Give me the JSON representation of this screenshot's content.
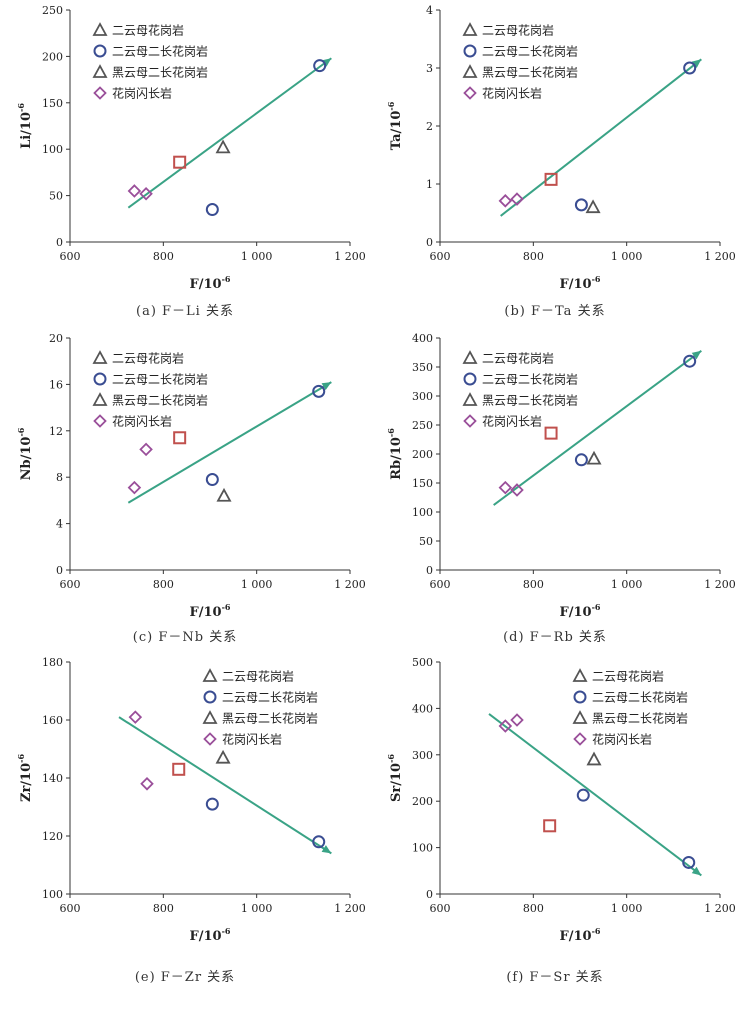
{
  "chart_data": [
    {
      "type": "scatter",
      "caption": "(a) F－Li 关系",
      "xlabel": "F/10",
      "ylabel": "Li/10",
      "label_sup": "-6",
      "xlim": [
        600,
        1200
      ],
      "xticks": [
        600,
        800,
        1000,
        1200
      ],
      "xtick_labels": [
        "600",
        "800",
        "1 000",
        "1 200"
      ],
      "ylim": [
        0,
        250
      ],
      "yticks": [
        0,
        50,
        100,
        150,
        200,
        250
      ],
      "ytick_labels": [
        "0",
        "50",
        "100",
        "150",
        "200",
        "250"
      ],
      "legend_placement": "top-left",
      "series": [
        {
          "name": "二云母花岗岩",
          "marker": "triangle",
          "color": "#555555",
          "points": [
            [
              928,
              102
            ]
          ]
        },
        {
          "name": "二云母二长花岗岩",
          "marker": "circle",
          "color": "#3a4d92",
          "points": [
            [
              905,
              35
            ],
            [
              1135,
              190
            ]
          ]
        },
        {
          "name": "黑云母二长花岗岩",
          "marker": "triangle",
          "color": "#555555",
          "points": []
        },
        {
          "name": "花岗闪长岩",
          "marker": "diamond",
          "color": "#9a4f9a",
          "points": [
            [
              738,
              55
            ],
            [
              763,
              52
            ]
          ]
        },
        {
          "name": "",
          "marker": "square",
          "color": "#c0504d",
          "points": [
            [
              835,
              86
            ]
          ]
        }
      ],
      "trend": {
        "from": [
          725,
          37
        ],
        "to": [
          1160,
          198
        ],
        "color": "#3aa386"
      }
    },
    {
      "type": "scatter",
      "caption": "(b) F－Ta 关系",
      "xlabel": "F/10",
      "ylabel": "Ta/10",
      "label_sup": "-6",
      "xlim": [
        600,
        1200
      ],
      "xticks": [
        600,
        800,
        1000,
        1200
      ],
      "xtick_labels": [
        "600",
        "800",
        "1 000",
        "1 200"
      ],
      "ylim": [
        0,
        4
      ],
      "yticks": [
        0,
        1,
        2,
        3,
        4
      ],
      "ytick_labels": [
        "0",
        "1",
        "2",
        "3",
        "4"
      ],
      "legend_placement": "top-left",
      "series": [
        {
          "name": "二云母花岗岩",
          "marker": "triangle",
          "color": "#555555",
          "points": [
            [
              928,
              0.6
            ]
          ]
        },
        {
          "name": "二云母二长花岗岩",
          "marker": "circle",
          "color": "#3a4d92",
          "points": [
            [
              903,
              0.64
            ],
            [
              1135,
              3.0
            ]
          ]
        },
        {
          "name": "黑云母二长花岗岩",
          "marker": "triangle",
          "color": "#555555",
          "points": []
        },
        {
          "name": "花岗闪长岩",
          "marker": "diamond",
          "color": "#9a4f9a",
          "points": [
            [
              740,
              0.71
            ],
            [
              765,
              0.74
            ]
          ]
        },
        {
          "name": "",
          "marker": "square",
          "color": "#c0504d",
          "points": [
            [
              838,
              1.08
            ]
          ]
        }
      ],
      "trend": {
        "from": [
          730,
          0.45
        ],
        "to": [
          1160,
          3.15
        ],
        "color": "#3aa386"
      }
    },
    {
      "type": "scatter",
      "caption": "(c) F－Nb 关系",
      "xlabel": "F/10",
      "ylabel": "Nb/10",
      "label_sup": "-6",
      "xlim": [
        600,
        1200
      ],
      "xticks": [
        600,
        800,
        1000,
        1200
      ],
      "xtick_labels": [
        "600",
        "800",
        "1 000",
        "1 200"
      ],
      "ylim": [
        0,
        20
      ],
      "yticks": [
        0,
        4,
        8,
        12,
        16,
        20
      ],
      "ytick_labels": [
        "0",
        "4",
        "8",
        "12",
        "16",
        "20"
      ],
      "legend_placement": "top-left",
      "series": [
        {
          "name": "二云母花岗岩",
          "marker": "triangle",
          "color": "#555555",
          "points": [
            [
              930,
              6.4
            ]
          ]
        },
        {
          "name": "二云母二长花岗岩",
          "marker": "circle",
          "color": "#3a4d92",
          "points": [
            [
              905,
              7.8
            ],
            [
              1133,
              15.4
            ]
          ]
        },
        {
          "name": "黑云母二长花岗岩",
          "marker": "triangle",
          "color": "#555555",
          "points": []
        },
        {
          "name": "花岗闪长岩",
          "marker": "diamond",
          "color": "#9a4f9a",
          "points": [
            [
              738,
              7.1
            ],
            [
              763,
              10.4
            ]
          ]
        },
        {
          "name": "",
          "marker": "square",
          "color": "#c0504d",
          "points": [
            [
              835,
              11.4
            ]
          ]
        }
      ],
      "trend": {
        "from": [
          725,
          5.8
        ],
        "to": [
          1160,
          16.2
        ],
        "color": "#3aa386"
      }
    },
    {
      "type": "scatter",
      "caption": "(d) F－Rb 关系",
      "xlabel": "F/10",
      "ylabel": "Rb/10",
      "label_sup": "-6",
      "xlim": [
        600,
        1200
      ],
      "xticks": [
        600,
        800,
        1000,
        1200
      ],
      "xtick_labels": [
        "600",
        "800",
        "1 000",
        "1 200"
      ],
      "ylim": [
        0,
        400
      ],
      "yticks": [
        0,
        50,
        100,
        150,
        200,
        250,
        300,
        350,
        400
      ],
      "ytick_labels": [
        "0",
        "50",
        "100",
        "150",
        "200",
        "250",
        "300",
        "350",
        "400"
      ],
      "legend_placement": "top-left",
      "series": [
        {
          "name": "二云母花岗岩",
          "marker": "triangle",
          "color": "#555555",
          "points": [
            [
              930,
              192
            ]
          ]
        },
        {
          "name": "二云母二长花岗岩",
          "marker": "circle",
          "color": "#3a4d92",
          "points": [
            [
              903,
              190
            ],
            [
              1135,
              360
            ]
          ]
        },
        {
          "name": "黑云母二长花岗岩",
          "marker": "triangle",
          "color": "#555555",
          "points": []
        },
        {
          "name": "花岗闪长岩",
          "marker": "diamond",
          "color": "#9a4f9a",
          "points": [
            [
              740,
              142
            ],
            [
              765,
              138
            ]
          ]
        },
        {
          "name": "",
          "marker": "square",
          "color": "#c0504d",
          "points": [
            [
              838,
              236
            ]
          ]
        }
      ],
      "trend": {
        "from": [
          715,
          112
        ],
        "to": [
          1160,
          378
        ],
        "color": "#3aa386"
      }
    },
    {
      "type": "scatter",
      "caption": "(e) F－Zr 关系",
      "xlabel": "F/10",
      "ylabel": "Zr/10",
      "label_sup": "-6",
      "xlim": [
        600,
        1200
      ],
      "xticks": [
        600,
        800,
        1000,
        1200
      ],
      "xtick_labels": [
        "600",
        "800",
        "1 000",
        "1 200"
      ],
      "ylim": [
        100,
        180
      ],
      "yticks": [
        100,
        120,
        140,
        160,
        180
      ],
      "ytick_labels": [
        "100",
        "120",
        "140",
        "160",
        "180"
      ],
      "legend_placement": "top-right",
      "series": [
        {
          "name": "二云母花岗岩",
          "marker": "triangle",
          "color": "#555555",
          "points": [
            [
              928,
              147
            ]
          ]
        },
        {
          "name": "二云母二长花岗岩",
          "marker": "circle",
          "color": "#3a4d92",
          "points": [
            [
              905,
              131
            ],
            [
              1133,
              118
            ]
          ]
        },
        {
          "name": "黑云母二长花岗岩",
          "marker": "triangle",
          "color": "#555555",
          "points": []
        },
        {
          "name": "花岗闪长岩",
          "marker": "diamond",
          "color": "#9a4f9a",
          "points": [
            [
              740,
              161
            ],
            [
              765,
              138
            ]
          ]
        },
        {
          "name": "",
          "marker": "square",
          "color": "#c0504d",
          "points": [
            [
              833,
              143
            ]
          ]
        }
      ],
      "trend": {
        "from": [
          705,
          161
        ],
        "to": [
          1160,
          114
        ],
        "color": "#3aa386"
      }
    },
    {
      "type": "scatter",
      "caption": "(f) F－Sr 关系",
      "xlabel": "F/10",
      "ylabel": "Sr/10",
      "label_sup": "-6",
      "xlim": [
        600,
        1200
      ],
      "xticks": [
        600,
        800,
        1000,
        1200
      ],
      "xtick_labels": [
        "600",
        "800",
        "1 000",
        "1 200"
      ],
      "ylim": [
        0,
        500
      ],
      "yticks": [
        0,
        100,
        200,
        300,
        400,
        500
      ],
      "ytick_labels": [
        "0",
        "100",
        "200",
        "300",
        "400",
        "500"
      ],
      "legend_placement": "top-right",
      "series": [
        {
          "name": "二云母花岗岩",
          "marker": "triangle",
          "color": "#555555",
          "points": [
            [
              930,
              290
            ]
          ]
        },
        {
          "name": "二云母二长花岗岩",
          "marker": "circle",
          "color": "#3a4d92",
          "points": [
            [
              907,
              213
            ],
            [
              1133,
              68
            ]
          ]
        },
        {
          "name": "黑云母二长花岗岩",
          "marker": "triangle",
          "color": "#555555",
          "points": []
        },
        {
          "name": "花岗闪长岩",
          "marker": "diamond",
          "color": "#9a4f9a",
          "points": [
            [
              740,
              362
            ],
            [
              765,
              375
            ]
          ]
        },
        {
          "name": "",
          "marker": "square",
          "color": "#c0504d",
          "points": [
            [
              835,
              147
            ]
          ]
        }
      ],
      "trend": {
        "from": [
          705,
          388
        ],
        "to": [
          1160,
          40
        ],
        "color": "#3aa386"
      }
    }
  ]
}
